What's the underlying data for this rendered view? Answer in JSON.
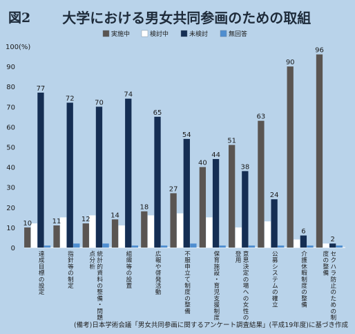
{
  "figure": {
    "label": "図2",
    "title": "大学における男女共同参画のための取組",
    "source": "(備考)日本学術会議「男女共同参画に関するアンケート調査結果」(平成19年度)に基づき作成"
  },
  "colors": {
    "background": "#b9d3ea",
    "実施中": "#5a5552",
    "検討中": "#ffffff",
    "未検討": "#152e53",
    "無回答": "#4f8ed0"
  },
  "chart_data": {
    "type": "bar",
    "title": "大学における男女共同参画のための取組",
    "ylabel": "(%)",
    "ylim": [
      0,
      100
    ],
    "yticks": [
      0,
      10,
      20,
      30,
      40,
      50,
      60,
      70,
      80,
      90,
      100
    ],
    "ytick_labels": [
      "0",
      "10",
      "20",
      "30",
      "40",
      "50",
      "60",
      "70",
      "80",
      "90",
      "100"
    ],
    "grid": false,
    "legend_position": "top",
    "categories": [
      "達成目標の設定",
      "指針等の制定",
      "統計的資料の整備・問題点分析",
      "組織等の設置",
      "広報や啓発活動",
      "不服申立て制度の整備",
      "保育施設・育児支援制度",
      "意思決定の場への女性の登用",
      "公募システムの確立",
      "介護休暇制度の整備",
      "セクハラ防止のための制度の整備"
    ],
    "series": [
      {
        "name": "実施中",
        "values": [
          10,
          11,
          12,
          14,
          18,
          27,
          40,
          51,
          63,
          90,
          96
        ]
      },
      {
        "name": "検討中",
        "values": [
          12,
          15,
          16,
          11,
          16,
          17,
          15,
          10,
          13,
          4,
          2
        ]
      },
      {
        "name": "未検討",
        "values": [
          77,
          72,
          70,
          74,
          65,
          54,
          44,
          38,
          24,
          6,
          2
        ]
      },
      {
        "name": "無回答",
        "values": [
          1,
          2,
          2,
          1,
          1,
          2,
          1,
          1,
          1,
          1,
          1
        ]
      }
    ],
    "data_labels": [
      "10",
      "77",
      "11",
      "72",
      "12",
      "70",
      "14",
      "74",
      "18",
      "65",
      "27",
      "54",
      "40",
      "44",
      "51",
      "38",
      "63",
      "24",
      "90",
      "6",
      "96",
      "2"
    ]
  }
}
